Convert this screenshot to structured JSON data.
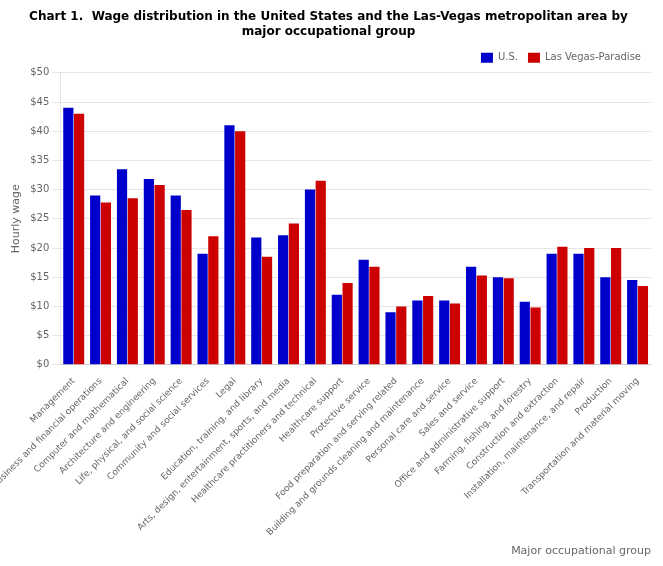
{
  "chart_data": {
    "type": "bar",
    "title": [
      "Chart 1.  Wage distribution in the United States and the Las-Vegas metropolitan area by",
      "major occupational group"
    ],
    "xlabel": "Major occupational group",
    "ylabel": "Hourly wage",
    "categories": [
      "Management",
      "Business and financial operations",
      "Computer and mathematical",
      "Architecture and engineering",
      "Life, physical, and social science",
      "Community and social services",
      "Legal",
      "Education, training, and library",
      "Arts, design, entertainment, sports, and media",
      "Healthcare practitioners and technical",
      "Healthcare support",
      "Protective service",
      "Food preparation and serving related",
      "Building and grounds cleaning and maintenance",
      "Personal care and service",
      "Sales and service",
      "Office and administrative support",
      "Farming, fishing, and forestry",
      "Construction and extraction",
      "Installation, maintenance, and repair",
      "Production",
      "Transportation and material moving"
    ],
    "series": [
      {
        "name": "U.S.",
        "color": "#0000cc",
        "values": [
          44.0,
          29.0,
          33.5,
          31.8,
          29.0,
          19.0,
          41.0,
          21.8,
          22.2,
          30.0,
          12.0,
          18.0,
          9.0,
          11.0,
          11.0,
          16.8,
          15.0,
          10.8,
          19.0,
          19.0,
          15.0,
          14.5
        ]
      },
      {
        "name": "Las Vegas-Paradise",
        "color": "#cc0000",
        "values": [
          43.0,
          27.8,
          28.5,
          30.8,
          26.5,
          22.0,
          40.0,
          18.5,
          24.2,
          31.5,
          14.0,
          16.8,
          10.0,
          11.8,
          10.5,
          15.3,
          14.8,
          9.8,
          20.2,
          20.0,
          20.0,
          13.5
        ]
      }
    ],
    "ylim": [
      0,
      50
    ],
    "yticks": [
      {
        "value": 0,
        "label": "$0"
      },
      {
        "value": 5,
        "label": "$5"
      },
      {
        "value": 10,
        "label": "$10"
      },
      {
        "value": 15,
        "label": "$15"
      },
      {
        "value": 20,
        "label": "$20"
      },
      {
        "value": 25,
        "label": "$25"
      },
      {
        "value": 30,
        "label": "$30"
      },
      {
        "value": 35,
        "label": "$35"
      },
      {
        "value": 40,
        "label": "$40"
      },
      {
        "value": 45,
        "label": "$45"
      },
      {
        "value": 50,
        "label": "$50"
      }
    ],
    "grid": true,
    "legend": "upper right"
  }
}
